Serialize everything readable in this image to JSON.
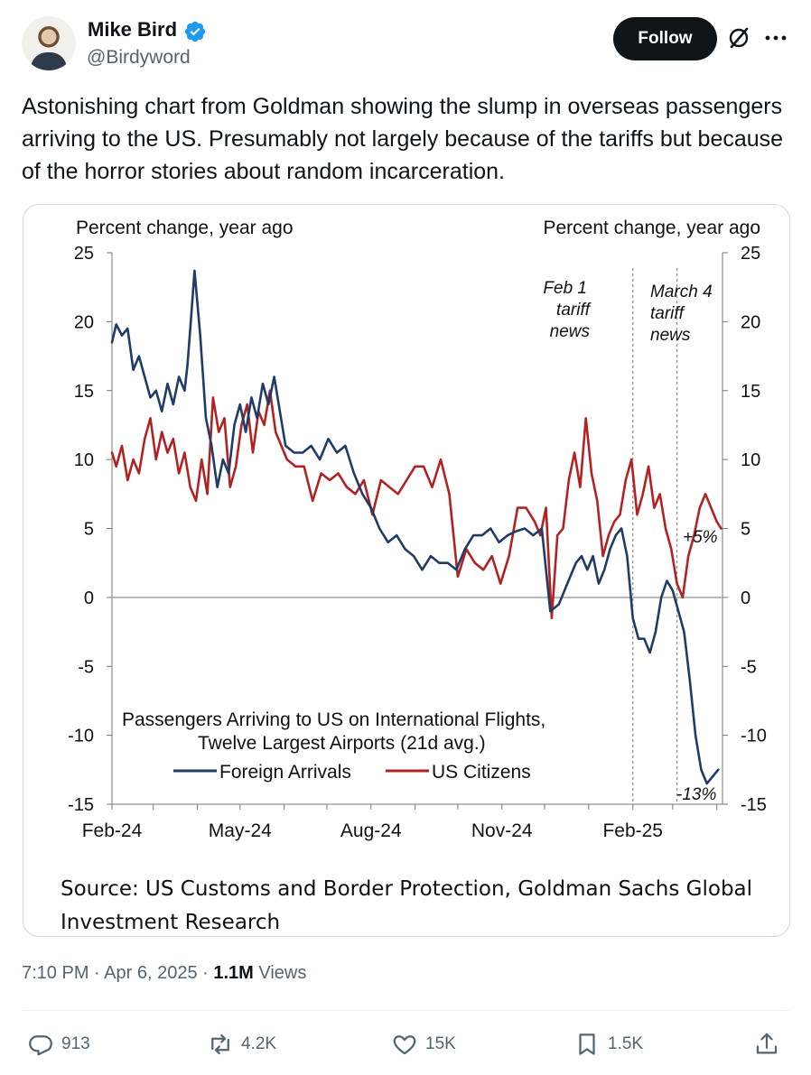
{
  "author": {
    "name": "Mike Bird",
    "handle": "@Birdyword",
    "verified": true
  },
  "header": {
    "follow_label": "Follow"
  },
  "tweet": {
    "text": "Astonishing chart from Goldman showing the slump in overseas passengers arriving to the US. Presumably not largely because of the tariffs but because of the horror stories about random incarceration."
  },
  "chart": {
    "left_axis_label": "Percent change, year ago",
    "right_axis_label": "Percent change, year ago",
    "annotation_feb1": [
      "Feb 1",
      "tariff",
      "news"
    ],
    "annotation_mar4": [
      "March 4",
      "tariff",
      "news"
    ],
    "legend_title_1": "Passengers Arriving to US on International Flights,",
    "legend_title_2": "Twelve Largest Airports (21d avg.)",
    "end_label_us": "+5%",
    "end_label_foreign": "-13%",
    "source": "Source: US Customs and Border Protection, Goldman Sachs Global Investment Research"
  },
  "chart_data": {
    "type": "line",
    "title": "Passengers Arriving to US on International Flights, Twelve Largest Airports (21d avg.)",
    "ylabel": "Percent change, year ago",
    "ylim": [
      -15,
      25
    ],
    "yticks": [
      25,
      20,
      15,
      10,
      5,
      0,
      -5,
      -10,
      -15
    ],
    "xticks": [
      "Feb-24",
      "May-24",
      "Aug-24",
      "Nov-24",
      "Feb-25"
    ],
    "xlim": [
      "2024-02-01",
      "2025-04-05"
    ],
    "legend": "bottom-left",
    "series": [
      {
        "name": "Foreign Arrivals",
        "color": "#1f3b68",
        "x": [
          "2024-02-01",
          "2024-02-04",
          "2024-02-08",
          "2024-02-12",
          "2024-02-16",
          "2024-02-20",
          "2024-02-24",
          "2024-02-28",
          "2024-03-03",
          "2024-03-07",
          "2024-03-11",
          "2024-03-15",
          "2024-03-19",
          "2024-03-23",
          "2024-03-25",
          "2024-03-27",
          "2024-03-30",
          "2024-04-03",
          "2024-04-07",
          "2024-04-11",
          "2024-04-15",
          "2024-04-19",
          "2024-04-23",
          "2024-04-27",
          "2024-05-01",
          "2024-05-05",
          "2024-05-09",
          "2024-05-13",
          "2024-05-17",
          "2024-05-21",
          "2024-05-25",
          "2024-05-29",
          "2024-06-02",
          "2024-06-08",
          "2024-06-14",
          "2024-06-20",
          "2024-06-26",
          "2024-07-02",
          "2024-07-08",
          "2024-07-14",
          "2024-07-20",
          "2024-07-26",
          "2024-08-01",
          "2024-08-07",
          "2024-08-13",
          "2024-08-19",
          "2024-08-25",
          "2024-08-31",
          "2024-09-06",
          "2024-09-12",
          "2024-09-18",
          "2024-09-24",
          "2024-09-30",
          "2024-10-06",
          "2024-10-12",
          "2024-10-18",
          "2024-10-24",
          "2024-10-30",
          "2024-11-05",
          "2024-11-11",
          "2024-11-17",
          "2024-11-23",
          "2024-11-29",
          "2024-12-05",
          "2024-12-11",
          "2024-12-17",
          "2024-12-23",
          "2024-12-27",
          "2024-12-31",
          "2025-01-04",
          "2025-01-08",
          "2025-01-12",
          "2025-01-16",
          "2025-01-20",
          "2025-01-24",
          "2025-01-28",
          "2025-02-01",
          "2025-02-05",
          "2025-02-09",
          "2025-02-13",
          "2025-02-17",
          "2025-02-21",
          "2025-02-25",
          "2025-03-01",
          "2025-03-05",
          "2025-03-09",
          "2025-03-13",
          "2025-03-17",
          "2025-03-21",
          "2025-03-25",
          "2025-03-29",
          "2025-04-02"
        ],
        "values": [
          18.5,
          19.8,
          19.0,
          19.5,
          16.5,
          17.5,
          16.0,
          14.5,
          15.0,
          13.5,
          15.5,
          14.0,
          16.0,
          15.0,
          16.8,
          19.5,
          23.7,
          19.0,
          13.0,
          11.0,
          8.0,
          10.0,
          9.0,
          12.5,
          14.0,
          12.0,
          14.5,
          13.0,
          15.5,
          14.0,
          16.0,
          13.5,
          11.0,
          10.5,
          10.5,
          11.0,
          10.0,
          11.5,
          10.5,
          11.0,
          9.0,
          7.5,
          6.5,
          5.0,
          4.0,
          4.5,
          3.5,
          3.0,
          2.0,
          3.0,
          2.5,
          2.5,
          2.0,
          3.5,
          4.5,
          4.5,
          5.0,
          4.0,
          4.5,
          4.8,
          5.0,
          4.5,
          5.0,
          -1.0,
          -0.5,
          1.0,
          2.5,
          3.0,
          2.0,
          3.0,
          1.0,
          2.0,
          3.5,
          4.5,
          5.0,
          3.0,
          -1.5,
          -3.0,
          -3.0,
          -4.0,
          -2.5,
          0.0,
          1.2,
          0.5,
          -1.0,
          -2.5,
          -6.0,
          -10.0,
          -12.5,
          -13.5,
          -13.0,
          -12.5
        ]
      },
      {
        "name": "US Citizens",
        "color": "#b22222",
        "x": [
          "2024-02-01",
          "2024-02-04",
          "2024-02-08",
          "2024-02-12",
          "2024-02-16",
          "2024-02-20",
          "2024-02-24",
          "2024-02-28",
          "2024-03-03",
          "2024-03-07",
          "2024-03-11",
          "2024-03-15",
          "2024-03-19",
          "2024-03-23",
          "2024-03-27",
          "2024-03-31",
          "2024-04-04",
          "2024-04-08",
          "2024-04-12",
          "2024-04-16",
          "2024-04-20",
          "2024-04-24",
          "2024-04-28",
          "2024-05-02",
          "2024-05-06",
          "2024-05-10",
          "2024-05-14",
          "2024-05-18",
          "2024-05-22",
          "2024-05-26",
          "2024-05-30",
          "2024-06-03",
          "2024-06-09",
          "2024-06-15",
          "2024-06-21",
          "2024-06-27",
          "2024-07-03",
          "2024-07-09",
          "2024-07-15",
          "2024-07-21",
          "2024-07-27",
          "2024-08-02",
          "2024-08-08",
          "2024-08-14",
          "2024-08-20",
          "2024-08-26",
          "2024-09-01",
          "2024-09-07",
          "2024-09-13",
          "2024-09-19",
          "2024-09-25",
          "2024-10-01",
          "2024-10-07",
          "2024-10-13",
          "2024-10-19",
          "2024-10-25",
          "2024-10-31",
          "2024-11-06",
          "2024-11-12",
          "2024-11-18",
          "2024-11-24",
          "2024-11-28",
          "2024-12-02",
          "2024-12-06",
          "2024-12-10",
          "2024-12-14",
          "2024-12-18",
          "2024-12-22",
          "2024-12-26",
          "2024-12-30",
          "2025-01-03",
          "2025-01-07",
          "2025-01-11",
          "2025-01-15",
          "2025-01-19",
          "2025-01-23",
          "2025-01-27",
          "2025-01-31",
          "2025-02-04",
          "2025-02-08",
          "2025-02-12",
          "2025-02-16",
          "2025-02-20",
          "2025-02-24",
          "2025-02-28",
          "2025-03-04",
          "2025-03-08",
          "2025-03-12",
          "2025-03-16",
          "2025-03-20",
          "2025-03-24",
          "2025-03-28",
          "2025-04-01",
          "2025-04-04"
        ],
        "values": [
          10.5,
          9.5,
          11.0,
          8.5,
          10.0,
          9.0,
          11.5,
          13.0,
          10.0,
          12.0,
          10.5,
          11.5,
          9.0,
          10.5,
          8.0,
          7.0,
          10.0,
          7.5,
          14.5,
          12.0,
          13.0,
          8.0,
          9.5,
          12.5,
          14.0,
          10.5,
          13.5,
          12.5,
          15.0,
          12.0,
          11.0,
          10.0,
          9.5,
          9.5,
          7.0,
          9.0,
          8.5,
          9.0,
          8.0,
          7.5,
          8.5,
          6.0,
          8.5,
          8.0,
          7.5,
          8.5,
          9.5,
          9.5,
          8.0,
          10.0,
          7.5,
          1.5,
          3.5,
          2.5,
          2.0,
          3.0,
          1.0,
          3.0,
          6.5,
          6.5,
          5.5,
          4.5,
          6.5,
          -1.5,
          4.5,
          5.0,
          8.5,
          10.5,
          8.0,
          13.0,
          9.0,
          7.0,
          3.0,
          4.5,
          5.5,
          6.0,
          8.5,
          10.0,
          6.0,
          7.5,
          9.5,
          6.5,
          7.5,
          5.0,
          3.5,
          1.0,
          0.0,
          3.0,
          4.5,
          6.5,
          7.5,
          6.5,
          5.5,
          5.0
        ]
      }
    ],
    "vlines": [
      {
        "x": "2025-02-01",
        "label": "Feb 1 tariff news"
      },
      {
        "x": "2025-03-04",
        "label": "March 4 tariff news"
      }
    ]
  },
  "footer": {
    "time": "7:10 PM · Apr 6, 2025 · ",
    "views_count": "1.1M",
    "views_label": " Views"
  },
  "actions": {
    "replies": "913",
    "reposts": "4.2K",
    "likes": "15K",
    "bookmarks": "1.5K"
  }
}
